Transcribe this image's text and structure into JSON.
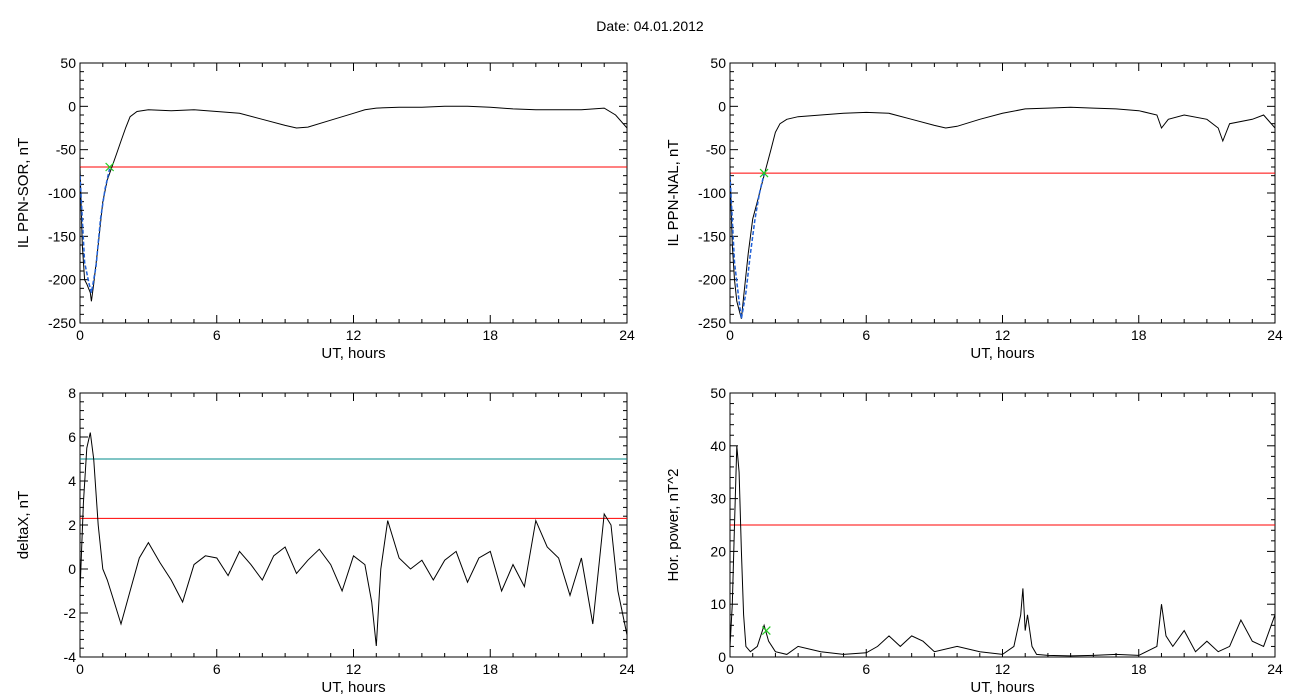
{
  "header": {
    "date_label": "Date:  04.01.2012"
  },
  "colors": {
    "trace": "#000000",
    "threshold_red": "#ff0000",
    "threshold_teal": "#008b8b",
    "fit_blue": "#1f5fd6",
    "marker_green": "#22cc22"
  },
  "chart_data": [
    {
      "type": "line",
      "ylabel": "IL PPN-SOR, nT",
      "xlabel": "UT, hours",
      "xlim": [
        0,
        24
      ],
      "ylim": [
        -250,
        50
      ],
      "xticks": [
        0,
        6,
        12,
        18,
        24
      ],
      "xtick_labels": [
        "0",
        "6",
        "12",
        "18",
        "24"
      ],
      "yticks": [
        -250,
        -200,
        -150,
        -100,
        -50,
        0,
        50
      ],
      "ytick_labels": [
        "-250",
        "-200",
        "-150",
        "-100",
        "-50",
        "0",
        "50"
      ],
      "series": [
        {
          "color": "#000000",
          "x": [
            0,
            0.1,
            0.2,
            0.3,
            0.45,
            0.5,
            0.6,
            0.8,
            1.0,
            1.2,
            1.4,
            1.6,
            1.8,
            2.0,
            2.2,
            2.5,
            3,
            4,
            5,
            6,
            7,
            8,
            9,
            9.5,
            10,
            11,
            12,
            12.5,
            13,
            14,
            15,
            16,
            17,
            18,
            19,
            20,
            21,
            22,
            23,
            23.5,
            24
          ],
          "y": [
            -70,
            -160,
            -200,
            -205,
            -215,
            -225,
            -205,
            -160,
            -110,
            -85,
            -70,
            -55,
            -40,
            -25,
            -12,
            -6,
            -4,
            -5,
            -4,
            -6,
            -8,
            -15,
            -22,
            -25,
            -24,
            -16,
            -8,
            -4,
            -2,
            -1,
            -1,
            0,
            0,
            -1,
            -3,
            -4,
            -4,
            -4,
            -2,
            -10,
            -25
          ]
        },
        {
          "color": "#1f5fd6",
          "x": [
            0,
            0.2,
            0.4,
            0.5,
            0.7,
            0.9,
            1.1,
            1.3
          ],
          "y": [
            -80,
            -180,
            -205,
            -215,
            -185,
            -130,
            -95,
            -72
          ]
        },
        {
          "color": "#ff0000",
          "x": [
            0,
            24
          ],
          "y": [
            -70,
            -70
          ]
        }
      ],
      "markers": [
        {
          "color": "#22cc22",
          "x": 1.3,
          "y": -70
        }
      ]
    },
    {
      "type": "line",
      "ylabel": "IL PPN-NAL, nT",
      "xlabel": "UT, hours",
      "xlim": [
        0,
        24
      ],
      "ylim": [
        -250,
        50
      ],
      "xticks": [
        0,
        6,
        12,
        18,
        24
      ],
      "xtick_labels": [
        "0",
        "6",
        "12",
        "18",
        "24"
      ],
      "yticks": [
        -250,
        -200,
        -150,
        -100,
        -50,
        0,
        50
      ],
      "ytick_labels": [
        "-250",
        "-200",
        "-150",
        "-100",
        "-50",
        "0",
        "50"
      ],
      "series": [
        {
          "color": "#000000",
          "x": [
            0,
            0.1,
            0.2,
            0.3,
            0.45,
            0.5,
            0.6,
            0.8,
            1.0,
            1.2,
            1.4,
            1.6,
            1.8,
            2.0,
            2.2,
            2.5,
            3,
            4,
            5,
            6,
            7,
            8,
            9,
            9.5,
            10,
            11,
            12,
            13,
            14,
            15,
            16,
            17,
            18,
            18.8,
            19,
            19.3,
            20,
            21,
            21.5,
            21.7,
            22,
            23,
            23.5,
            24
          ],
          "y": [
            -75,
            -160,
            -200,
            -225,
            -240,
            -245,
            -220,
            -170,
            -130,
            -110,
            -90,
            -70,
            -50,
            -30,
            -20,
            -15,
            -12,
            -10,
            -8,
            -7,
            -8,
            -15,
            -22,
            -25,
            -23,
            -15,
            -8,
            -3,
            -2,
            -1,
            -2,
            -3,
            -5,
            -10,
            -25,
            -15,
            -10,
            -15,
            -25,
            -40,
            -20,
            -15,
            -10,
            -25
          ]
        },
        {
          "color": "#1f5fd6",
          "x": [
            0,
            0.2,
            0.4,
            0.5,
            0.7,
            0.9,
            1.1,
            1.3,
            1.5
          ],
          "y": [
            -80,
            -180,
            -225,
            -245,
            -215,
            -170,
            -130,
            -100,
            -78
          ]
        },
        {
          "color": "#ff0000",
          "x": [
            0,
            24
          ],
          "y": [
            -77,
            -77
          ]
        }
      ],
      "markers": [
        {
          "color": "#22cc22",
          "x": 1.5,
          "y": -77
        }
      ]
    },
    {
      "type": "line",
      "ylabel": "deltaX, nT",
      "xlabel": "UT, hours",
      "xlim": [
        0,
        24
      ],
      "ylim": [
        -4,
        8
      ],
      "xticks": [
        0,
        6,
        12,
        18,
        24
      ],
      "xtick_labels": [
        "0",
        "6",
        "12",
        "18",
        "24"
      ],
      "yticks": [
        -4,
        -2,
        0,
        2,
        4,
        6,
        8
      ],
      "ytick_labels": [
        "-4",
        "-2",
        "0",
        "2",
        "4",
        "6",
        "8"
      ],
      "series": [
        {
          "color": "#000000",
          "x": [
            0,
            0.15,
            0.3,
            0.45,
            0.6,
            0.8,
            1.0,
            1.2,
            1.5,
            1.8,
            2.2,
            2.6,
            3,
            3.5,
            4,
            4.5,
            5,
            5.5,
            6,
            6.5,
            7,
            7.5,
            8,
            8.5,
            9,
            9.5,
            10,
            10.5,
            11,
            11.5,
            12,
            12.5,
            12.8,
            13.0,
            13.2,
            13.5,
            14,
            14.5,
            15,
            15.5,
            16,
            16.5,
            17,
            17.5,
            18,
            18.5,
            19,
            19.5,
            20,
            20.5,
            21,
            21.5,
            22,
            22.5,
            22.8,
            23,
            23.3,
            23.6,
            24
          ],
          "y": [
            -1,
            3,
            5.5,
            6.2,
            5,
            2,
            0,
            -0.5,
            -1.5,
            -2.5,
            -1,
            0.5,
            1.2,
            0.3,
            -0.5,
            -1.5,
            0.2,
            0.6,
            0.5,
            -0.3,
            0.8,
            0.2,
            -0.5,
            0.6,
            1,
            -0.2,
            0.4,
            0.9,
            0.2,
            -1,
            0.6,
            0.2,
            -1.5,
            -3.5,
            0,
            2.2,
            0.5,
            0,
            0.4,
            -0.5,
            0.4,
            0.8,
            -0.6,
            0.5,
            0.8,
            -1,
            0.2,
            -0.8,
            2.2,
            1,
            0.5,
            -1.2,
            0.5,
            -2.5,
            0.5,
            2.5,
            2,
            -1,
            -3
          ]
        },
        {
          "color": "#008b8b",
          "x": [
            0,
            24
          ],
          "y": [
            5,
            5
          ]
        },
        {
          "color": "#ff0000",
          "x": [
            0,
            24
          ],
          "y": [
            2.3,
            2.3
          ]
        }
      ],
      "markers": []
    },
    {
      "type": "line",
      "ylabel": "Hor. power, nT^2",
      "xlabel": "UT, hours",
      "xlim": [
        0,
        24
      ],
      "ylim": [
        0,
        50
      ],
      "xticks": [
        0,
        6,
        12,
        18,
        24
      ],
      "xtick_labels": [
        "0",
        "6",
        "12",
        "18",
        "24"
      ],
      "yticks": [
        0,
        10,
        20,
        30,
        40,
        50
      ],
      "ytick_labels": [
        "0",
        "10",
        "20",
        "30",
        "40",
        "50"
      ],
      "series": [
        {
          "color": "#000000",
          "x": [
            0,
            0.1,
            0.2,
            0.3,
            0.4,
            0.5,
            0.6,
            0.7,
            0.9,
            1.2,
            1.5,
            1.7,
            2,
            2.5,
            3,
            4,
            5,
            6,
            6.5,
            7,
            7.5,
            8,
            8.5,
            9,
            10,
            11,
            12,
            12.5,
            12.8,
            12.9,
            13.0,
            13.1,
            13.3,
            13.5,
            14,
            15,
            16,
            17,
            18,
            18.8,
            19.0,
            19.2,
            19.5,
            20,
            20.5,
            21,
            21.5,
            22,
            22.5,
            23,
            23.5,
            24
          ],
          "y": [
            2,
            10,
            25,
            40,
            35,
            20,
            8,
            2,
            1,
            2,
            6,
            3,
            1,
            0.5,
            2,
            1,
            0.5,
            0.8,
            2,
            4,
            2,
            4,
            3,
            1,
            2,
            1,
            0.5,
            2,
            8,
            13,
            5,
            8,
            2,
            0.5,
            0.3,
            0.2,
            0.3,
            0.5,
            0.3,
            2,
            10,
            4,
            2,
            5,
            1,
            3,
            1,
            2,
            7,
            3,
            2,
            8
          ]
        },
        {
          "color": "#ff0000",
          "x": [
            0,
            24
          ],
          "y": [
            25,
            25
          ]
        }
      ],
      "markers": [
        {
          "color": "#22cc22",
          "x": 1.6,
          "y": 5
        }
      ]
    }
  ]
}
